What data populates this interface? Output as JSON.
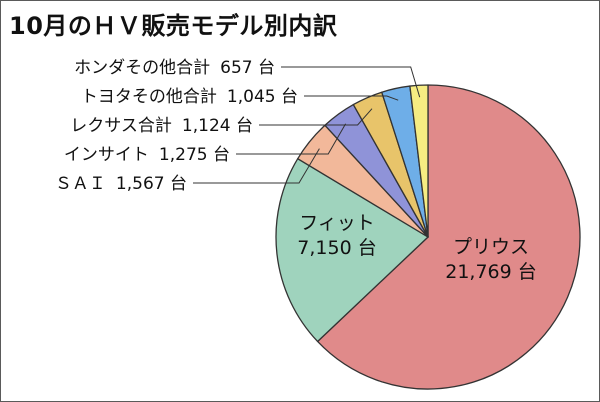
{
  "colors": {
    "プリウス": "#e08a8a",
    "フィット": "#9fd3bd",
    "ＳＡＩ": "#f2b89a",
    "インサイト": "#8f93d8",
    "レクサス合計": "#e8c46a",
    "トヨタその他合計": "#6eaee8",
    "ホンダその他合計": "#f6ec82",
    "outline": "#333333",
    "leader": "#333333"
  },
  "chart_data": {
    "type": "pie",
    "title": "10月のＨＶ販売モデル別内訳",
    "unit": "台",
    "slices": [
      {
        "name": "プリウス",
        "value": 21769,
        "label": "21,769 台"
      },
      {
        "name": "フィット",
        "value": 7150,
        "label": "7,150 台"
      },
      {
        "name": "ＳＡＩ",
        "value": 1567,
        "label": "1,567 台"
      },
      {
        "name": "インサイト",
        "value": 1275,
        "label": "1,275 台"
      },
      {
        "name": "レクサス合計",
        "value": 1124,
        "label": "1,124 台"
      },
      {
        "name": "トヨタその他合計",
        "value": 1045,
        "label": "1,045 台"
      },
      {
        "name": "ホンダその他合計",
        "value": 657,
        "label": "657 台"
      }
    ]
  }
}
